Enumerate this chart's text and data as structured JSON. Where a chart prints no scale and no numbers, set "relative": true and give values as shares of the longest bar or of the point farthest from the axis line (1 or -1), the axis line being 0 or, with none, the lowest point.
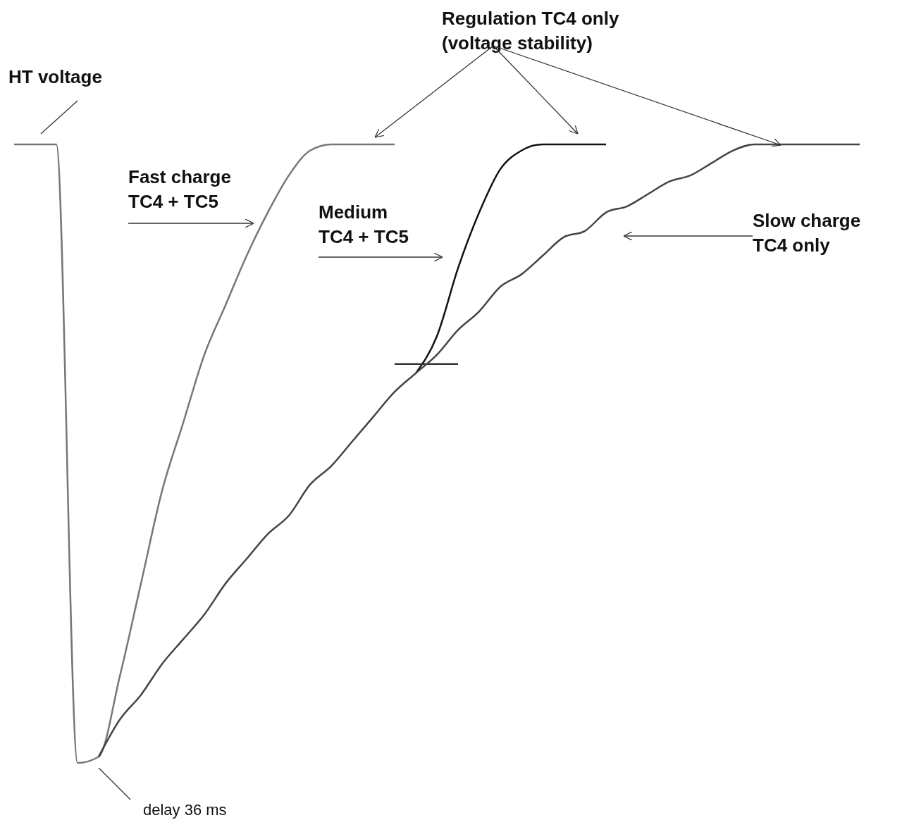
{
  "chart_data": {
    "type": "line",
    "relative": true,
    "categories": [
      null,
      null,
      null,
      null,
      null,
      null,
      null,
      null,
      null,
      null,
      null,
      null,
      null,
      null,
      null,
      null,
      null,
      null,
      null,
      null,
      null,
      null,
      null,
      null,
      null,
      null,
      null,
      null,
      null,
      null,
      null,
      null,
      null,
      null,
      null,
      null,
      null,
      null,
      null,
      null,
      null
    ],
    "series": [
      {
        "color": "#777777",
        "values": [
          1,
          1,
          1,
          0,
          0.01,
          0.14,
          0.29,
          0.44,
          0.55,
          0.66,
          0.74,
          0.82,
          0.89,
          0.95,
          0.99,
          1,
          1,
          1,
          1,
          null,
          null,
          null,
          null,
          null,
          null,
          null,
          null,
          null,
          null,
          null,
          null,
          null,
          null,
          null,
          null,
          null,
          null,
          null,
          null,
          null,
          null
        ]
      },
      {
        "color": "#111111",
        "values": [
          null,
          null,
          null,
          null,
          null,
          null,
          null,
          null,
          null,
          null,
          null,
          null,
          null,
          null,
          null,
          null,
          null,
          null,
          null,
          0.63,
          0.69,
          0.8,
          0.89,
          0.96,
          0.99,
          1,
          1,
          1,
          1,
          null,
          null,
          null,
          null,
          null,
          null,
          null,
          null,
          null,
          null,
          null,
          null
        ]
      },
      {
        "color": "#333333",
        "values": [
          null,
          null,
          null,
          null,
          null,
          null,
          null,
          null,
          null,
          null,
          null,
          null,
          null,
          null,
          null,
          null,
          null,
          null,
          0.645,
          0.645,
          0.645,
          0.645,
          null,
          null,
          null,
          null,
          null,
          null,
          null,
          null,
          null,
          null,
          null,
          null,
          null,
          null,
          null,
          null,
          null,
          null,
          null
        ]
      },
      {
        "color": "#444444",
        "values": [
          null,
          null,
          null,
          null,
          0.01,
          0.07,
          0.11,
          0.16,
          0.2,
          0.24,
          0.29,
          0.33,
          0.37,
          0.4,
          0.45,
          0.48,
          0.52,
          0.56,
          0.6,
          0.63,
          0.66,
          0.7,
          0.73,
          0.77,
          0.79,
          0.82,
          0.85,
          0.86,
          0.89,
          0.9,
          0.92,
          0.94,
          0.95,
          0.97,
          0.99,
          1,
          1,
          1,
          1,
          1,
          1
        ]
      }
    ],
    "annotations": [
      "HT voltage",
      "Regulation TC4 only\n(voltage stability)",
      "Fast charge\nTC4 + TC5",
      "Medium\nTC4 + TC5",
      "Slow charge\nTC4 only",
      "delay 36 ms"
    ]
  }
}
